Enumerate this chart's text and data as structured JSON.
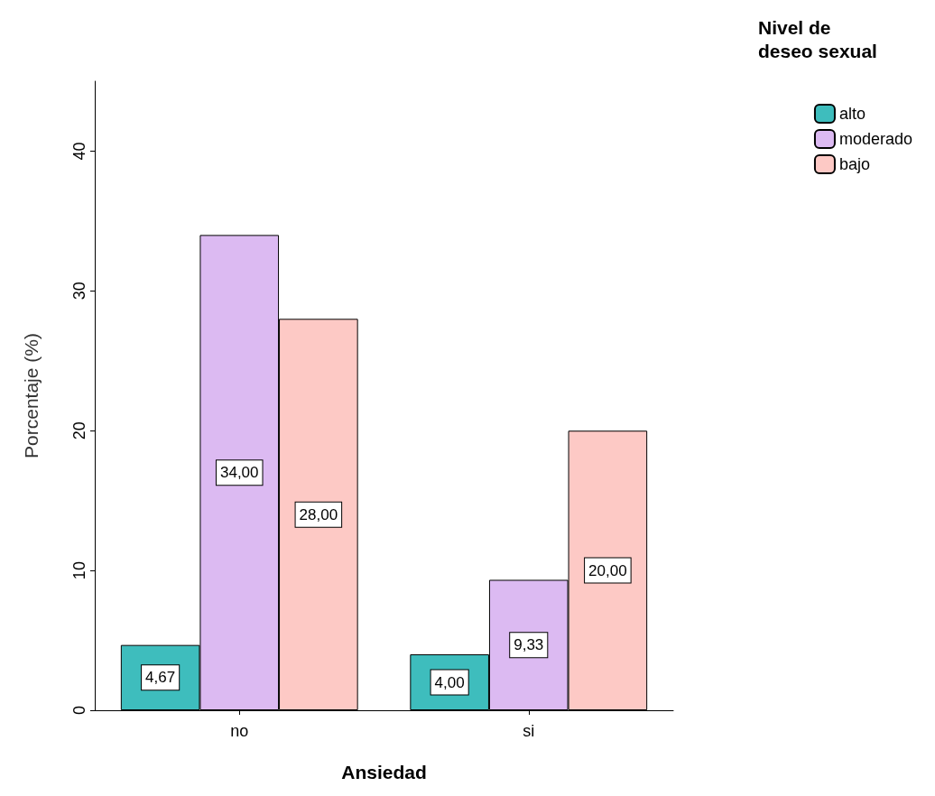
{
  "chart_data": {
    "type": "bar",
    "xlabel": "Ansiedad",
    "ylabel": "Porcentaje (%)",
    "legend_title": "Nivel de\ndeseo sexual",
    "categories": [
      "no",
      "si"
    ],
    "series": [
      {
        "name": "alto",
        "color": "#3ebdbd",
        "values": [
          4.67,
          4.0
        ],
        "value_labels": [
          "4,67",
          "4,00"
        ]
      },
      {
        "name": "moderado",
        "color": "#dcbaf2",
        "values": [
          34.0,
          9.33
        ],
        "value_labels": [
          "34,00",
          "9,33"
        ]
      },
      {
        "name": "bajo",
        "color": "#fdc9c5",
        "values": [
          28.0,
          20.0
        ],
        "value_labels": [
          "28,00",
          "20,00"
        ]
      }
    ],
    "ylim": [
      0,
      45
    ],
    "yticks": [
      0,
      10,
      20,
      30,
      40
    ],
    "grid": false,
    "legend": "top right"
  }
}
